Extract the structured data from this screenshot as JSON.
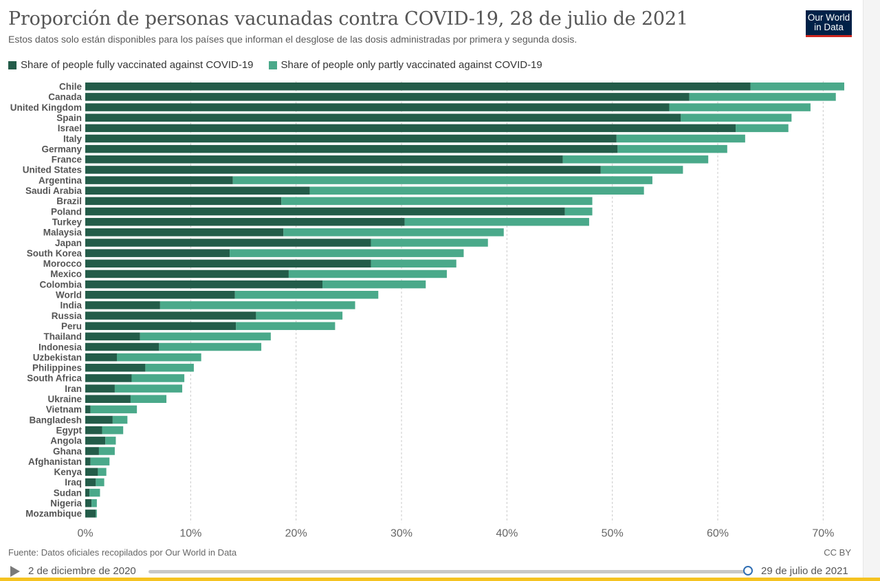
{
  "header": {
    "title": "Proporción de personas vacunadas contra COVID-19, 28 de julio de 2021",
    "subtitle": "Estos datos solo están disponibles para los países que informan el desglose de las dosis administradas por primera y segunda dosis.",
    "logo_line1": "Our World",
    "logo_line2": "in Data"
  },
  "legend": [
    {
      "label": "Share of people fully vaccinated against COVID-19",
      "color": "#235c49"
    },
    {
      "label": "Share of people only partly vaccinated against COVID-19",
      "color": "#4aa98a"
    }
  ],
  "chart_data": {
    "type": "bar",
    "orientation": "horizontal",
    "stacked": true,
    "title": "Proporción de personas vacunadas contra COVID-19, 28 de julio de 2021",
    "xlim": [
      0,
      72
    ],
    "xticks": [
      0,
      10,
      20,
      30,
      40,
      50,
      60,
      70
    ],
    "xtick_labels": [
      "0%",
      "10%",
      "20%",
      "30%",
      "40%",
      "50%",
      "60%",
      "70%"
    ],
    "grid": "vertical dashed",
    "legend_position": "top-left",
    "categories": [
      "Chile",
      "Canada",
      "United Kingdom",
      "Spain",
      "Israel",
      "Italy",
      "Germany",
      "France",
      "United States",
      "Argentina",
      "Saudi Arabia",
      "Brazil",
      "Poland",
      "Turkey",
      "Malaysia",
      "Japan",
      "South Korea",
      "Morocco",
      "Mexico",
      "Colombia",
      "World",
      "India",
      "Russia",
      "Peru",
      "Thailand",
      "Indonesia",
      "Uzbekistan",
      "Philippines",
      "South Africa",
      "Iran",
      "Ukraine",
      "Vietnam",
      "Bangladesh",
      "Egypt",
      "Angola",
      "Ghana",
      "Afghanistan",
      "Kenya",
      "Iraq",
      "Sudan",
      "Nigeria",
      "Mozambique"
    ],
    "series": [
      {
        "name": "Share of people fully vaccinated against COVID-19",
        "color": "#235c49",
        "values": [
          63.1,
          57.3,
          55.4,
          56.5,
          61.7,
          50.4,
          50.5,
          45.3,
          48.9,
          14.0,
          21.3,
          18.6,
          45.5,
          30.3,
          18.8,
          27.1,
          13.7,
          27.1,
          19.3,
          22.5,
          14.2,
          7.1,
          16.2,
          14.3,
          5.2,
          7.0,
          3.0,
          5.7,
          4.4,
          2.8,
          4.3,
          0.5,
          2.6,
          1.6,
          1.9,
          1.3,
          0.5,
          1.2,
          1.0,
          0.4,
          0.6,
          1.0
        ]
      },
      {
        "name": "Share of people only partly vaccinated against COVID-19",
        "color": "#4aa98a",
        "values": [
          8.9,
          13.9,
          13.4,
          10.5,
          5.0,
          12.2,
          10.4,
          13.8,
          7.8,
          39.8,
          31.7,
          29.5,
          2.6,
          17.5,
          20.9,
          11.1,
          22.2,
          8.1,
          15.0,
          9.8,
          13.6,
          18.5,
          8.2,
          9.4,
          12.4,
          9.7,
          8.0,
          4.6,
          5.0,
          6.4,
          3.4,
          4.4,
          1.4,
          2.0,
          1.0,
          1.5,
          1.8,
          0.8,
          0.8,
          1.0,
          0.5,
          0.1
        ]
      }
    ]
  },
  "footer": {
    "source": "Fuente: Datos oficiales recopilados por Our World in Data",
    "license": "CC BY"
  },
  "timeline": {
    "start_label": "2 de diciembre de 2020",
    "end_label": "29 de julio de 2021",
    "position": 1.0
  }
}
